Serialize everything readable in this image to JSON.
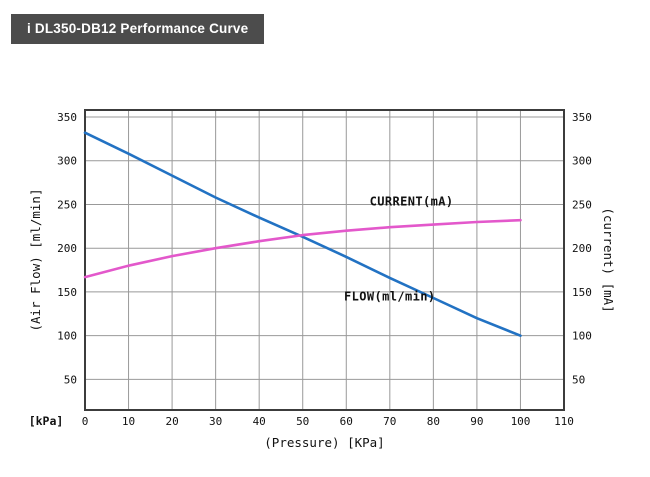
{
  "header": {
    "title": "i DL350-DB12 Performance Curve"
  },
  "colors": {
    "background": "#ffffff",
    "header_bg": "#4c4c4c",
    "header_fg": "#ffffff",
    "text": "#111111",
    "grid": "#999999",
    "plot_border": "#3c3c3c"
  },
  "chart_data": {
    "type": "line",
    "title": "i DL350-DB12 Performance Curve",
    "xlabel": "(Pressure) [KPa]",
    "ylabel_left": "(Air Flow) [ml/min]",
    "ylabel_right": "(current) [mA]",
    "corner_label": "[kPa]",
    "xlim": [
      0,
      110
    ],
    "ylim": [
      15,
      358
    ],
    "xticks": [
      0,
      10,
      20,
      30,
      40,
      50,
      60,
      70,
      80,
      90,
      100,
      110
    ],
    "yticks": [
      50,
      100,
      150,
      200,
      250,
      300,
      350
    ],
    "grid": true,
    "legend_position": "inline-labels",
    "x": [
      0,
      10,
      20,
      30,
      40,
      50,
      60,
      70,
      80,
      90,
      100
    ],
    "series": [
      {
        "key": "flow",
        "name": "FLOW(ml/min)",
        "label": "FLOW(ml/min)",
        "color": "#2272c3",
        "values": [
          332,
          308,
          283,
          258,
          235,
          213,
          190,
          166,
          143,
          120,
          100
        ],
        "label_pos": {
          "x": 70,
          "y": 140
        }
      },
      {
        "key": "current",
        "name": "CURRENT(mA)",
        "label": "CURRENT(mA)",
        "color": "#e358cb",
        "values": [
          167,
          180,
          191,
          200,
          208,
          215,
          220,
          224,
          227,
          230,
          232
        ],
        "label_pos": {
          "x": 75,
          "y": 249
        }
      }
    ]
  }
}
